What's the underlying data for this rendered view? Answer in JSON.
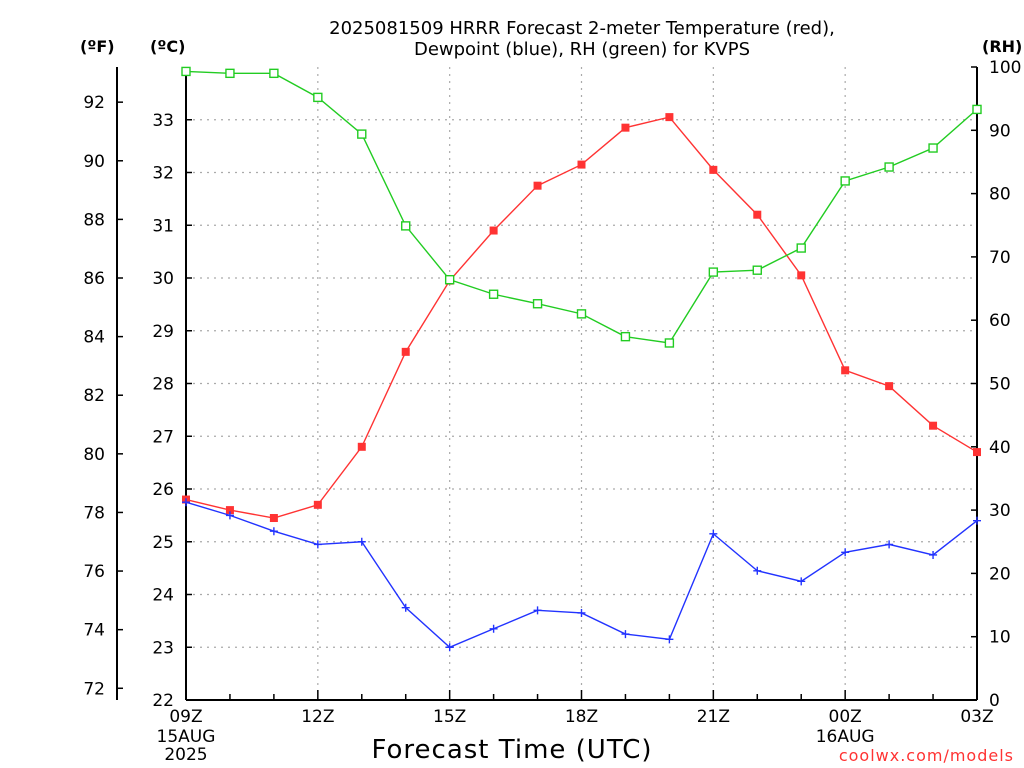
{
  "title_lines": [
    "2025081509 HRRR Forecast 2-meter Temperature (red),",
    "Dewpoint (blue), RH (green) for KVPS"
  ],
  "units": {
    "fahrenheit": "(ºF)",
    "celsius": "(ºC)",
    "rh": "(RH)"
  },
  "xlabel": "Forecast Time (UTC)",
  "credit": "coolwx.com/models",
  "colors": {
    "temperature": "#ff3333",
    "dewpoint": "#2233ff",
    "rh": "#22cc22",
    "grid": "#aaaaaa",
    "axis": "#000000"
  },
  "chart_data": {
    "type": "line",
    "title": "2025081509 HRRR Forecast 2-meter Temperature (red), Dewpoint (blue), RH (green) for KVPS",
    "xlabel": "Forecast Time (UTC)",
    "x_hours": [
      0,
      1,
      2,
      3,
      4,
      5,
      6,
      7,
      8,
      9,
      10,
      11,
      12,
      13,
      14,
      15,
      16,
      17,
      18
    ],
    "x_ticks": [
      {
        "hour": 0,
        "label": "09Z",
        "sub": [
          "15AUG",
          "2025"
        ]
      },
      {
        "hour": 3,
        "label": "12Z",
        "sub": []
      },
      {
        "hour": 6,
        "label": "15Z",
        "sub": []
      },
      {
        "hour": 9,
        "label": "18Z",
        "sub": []
      },
      {
        "hour": 12,
        "label": "21Z",
        "sub": []
      },
      {
        "hour": 15,
        "label": "00Z",
        "sub": [
          "16AUG"
        ]
      },
      {
        "hour": 18,
        "label": "03Z",
        "sub": []
      }
    ],
    "y_celsius": {
      "range": [
        22,
        34
      ],
      "ticks": [
        22,
        23,
        24,
        25,
        26,
        27,
        28,
        29,
        30,
        31,
        32,
        33
      ]
    },
    "y_fahrenheit": {
      "ticks": [
        72,
        74,
        76,
        78,
        80,
        82,
        84,
        86,
        88,
        90,
        92
      ]
    },
    "y_rh": {
      "range": [
        0,
        100
      ],
      "ticks": [
        0,
        10,
        20,
        30,
        40,
        50,
        60,
        70,
        80,
        90,
        100
      ]
    },
    "grid": true,
    "series": [
      {
        "name": "Temperature",
        "axis": "celsius",
        "marker": "filled-square",
        "color": "#ff3333",
        "values": [
          25.8,
          25.6,
          25.45,
          25.7,
          26.8,
          28.6,
          29.95,
          30.9,
          31.75,
          32.15,
          32.85,
          33.05,
          32.05,
          31.2,
          30.05,
          28.25,
          27.95,
          27.2,
          26.7
        ]
      },
      {
        "name": "Dewpoint",
        "axis": "celsius",
        "marker": "plus",
        "color": "#2233ff",
        "values": [
          25.75,
          25.5,
          25.2,
          24.95,
          25.0,
          23.75,
          23.0,
          23.35,
          23.7,
          23.65,
          23.25,
          23.15,
          25.15,
          24.45,
          24.25,
          24.8,
          24.95,
          24.75,
          25.4
        ]
      },
      {
        "name": "RH",
        "axis": "rh",
        "marker": "open-square",
        "color": "#22cc22",
        "values": [
          99.3,
          99.0,
          99.0,
          95.2,
          89.4,
          74.9,
          66.4,
          64.1,
          62.6,
          61.0,
          57.4,
          56.4,
          67.6,
          67.9,
          71.4,
          82.0,
          84.2,
          87.2,
          93.3
        ]
      }
    ]
  }
}
